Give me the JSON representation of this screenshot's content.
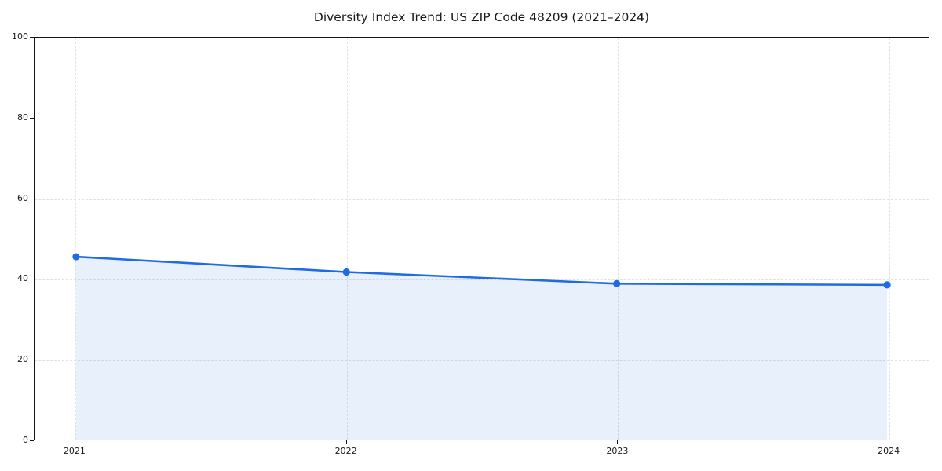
{
  "colors": {
    "line": "#1f6be6",
    "fill": "#1f6be6",
    "fill_opacity": 0.1,
    "grid": "#e2e2e2",
    "spine": "#141414",
    "text": "#1a1a1a",
    "background": "#ffffff"
  },
  "chart_data": {
    "type": "line",
    "title": "Diversity Index Trend: US ZIP Code 48209 (2021–2024)",
    "xlabel": "",
    "ylabel": "",
    "x": [
      2021,
      2022,
      2023,
      2024
    ],
    "series": [
      {
        "name": "Diversity Index",
        "values": [
          45.5,
          41.7,
          38.8,
          38.5
        ]
      }
    ],
    "area_fill": true,
    "marker": "circle",
    "xlim": [
      2020.85,
      2024.15
    ],
    "ylim": [
      0,
      100
    ],
    "xticks": [
      "2021",
      "2022",
      "2023",
      "2024"
    ],
    "xtick_positions": [
      2021,
      2022,
      2023,
      2024
    ],
    "yticks": [
      "0",
      "20",
      "40",
      "60",
      "80",
      "100"
    ],
    "ytick_positions": [
      0,
      20,
      40,
      60,
      80,
      100
    ],
    "grid": "dashed",
    "legend_position": "none"
  }
}
